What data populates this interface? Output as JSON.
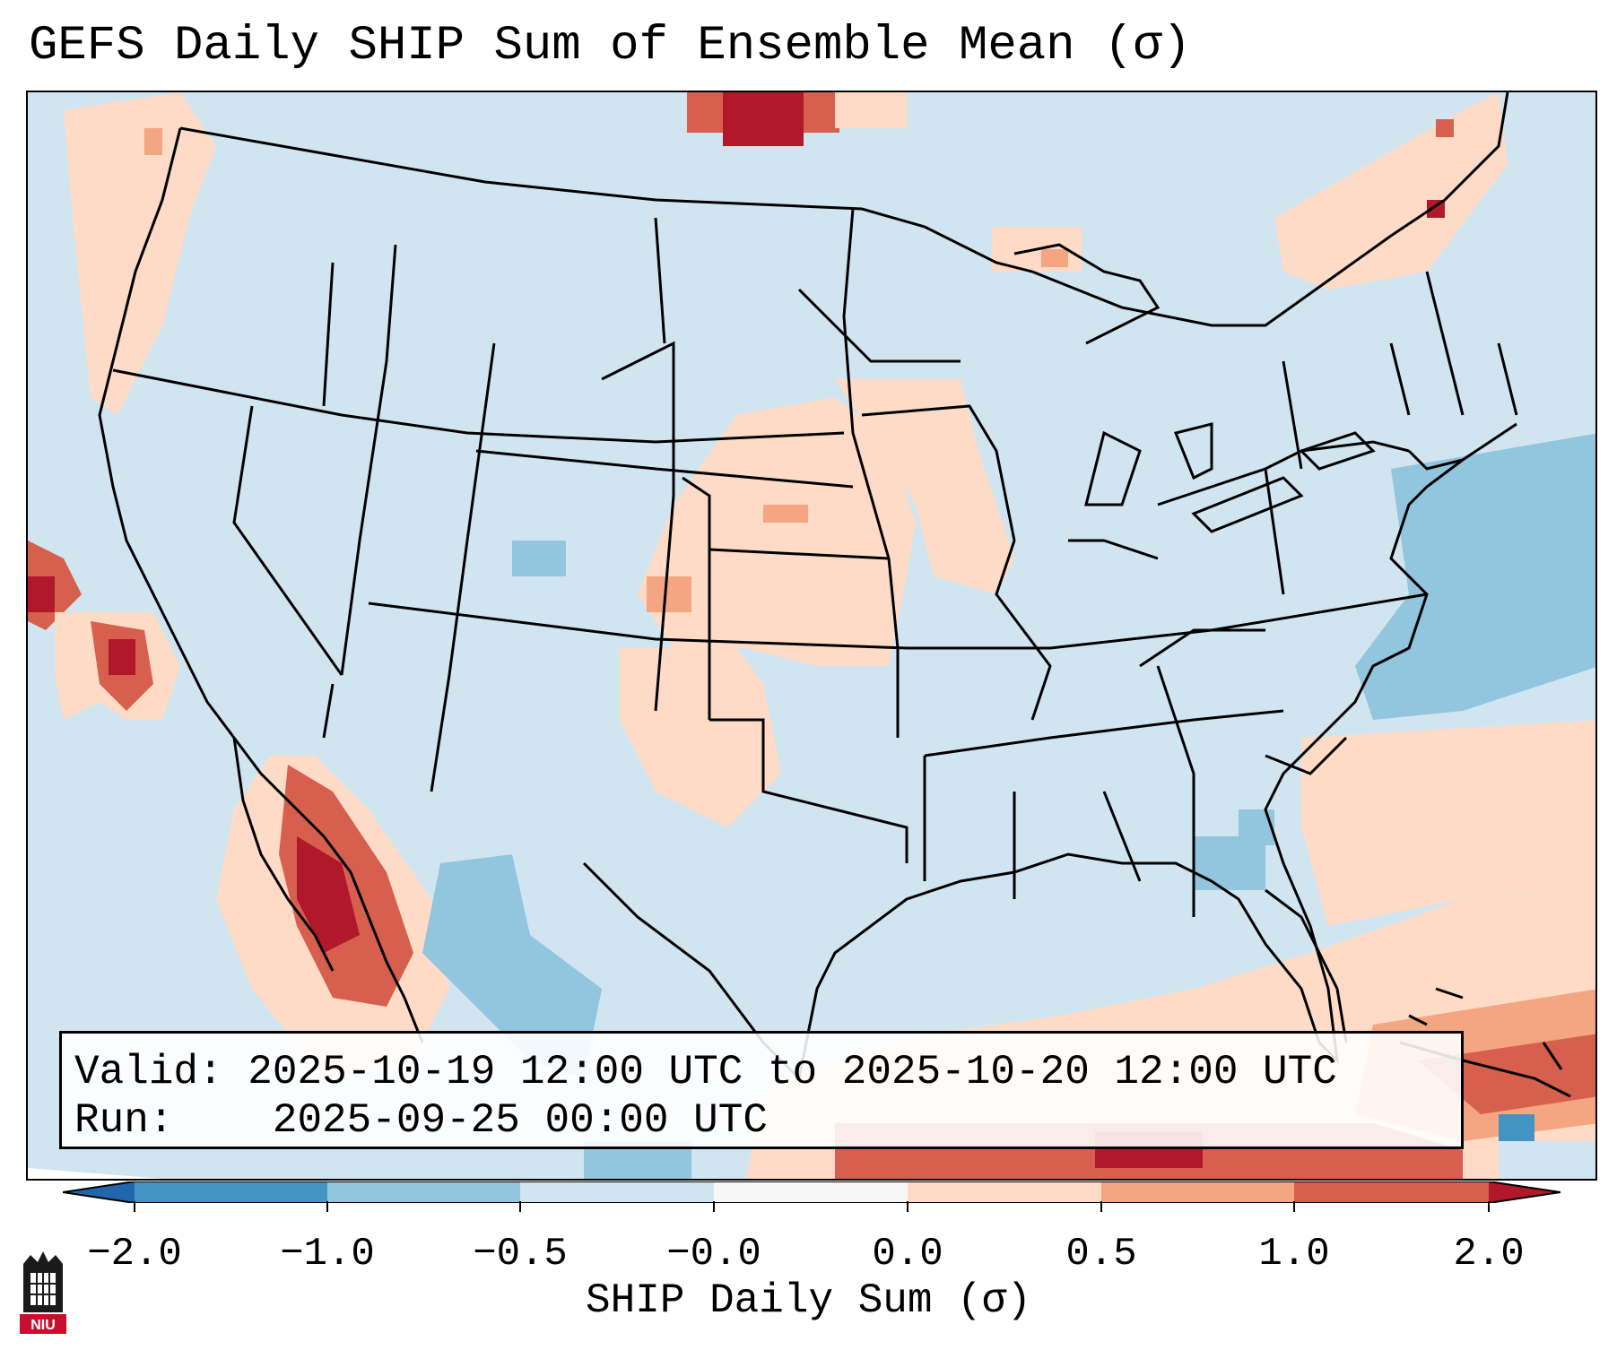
{
  "title": "GEFS Daily SHIP Sum of Ensemble Mean (σ)",
  "info": {
    "valid_label": "Valid:",
    "valid_value": "2025-10-19 12:00 UTC to 2025-10-20 12:00 UTC",
    "run_label": "Run:",
    "run_value": "2025-09-25 00:00 UTC"
  },
  "colorbar": {
    "label": "SHIP Daily Sum (σ)",
    "ticks": [
      "−2.0",
      "−1.0",
      "−0.5",
      "−0.0",
      "0.0",
      "0.5",
      "1.0",
      "2.0"
    ],
    "colors": [
      "#2166ac",
      "#4393c3",
      "#92c5de",
      "#d1e5f0",
      "#f7f7f7",
      "#fddbc7",
      "#f4a582",
      "#d6604d",
      "#b2182b"
    ]
  },
  "logo": {
    "text": "NIU",
    "color": "#c8102e"
  },
  "legend_colors": {
    "background": "#d1e5f0",
    "coastline": "#000000"
  }
}
